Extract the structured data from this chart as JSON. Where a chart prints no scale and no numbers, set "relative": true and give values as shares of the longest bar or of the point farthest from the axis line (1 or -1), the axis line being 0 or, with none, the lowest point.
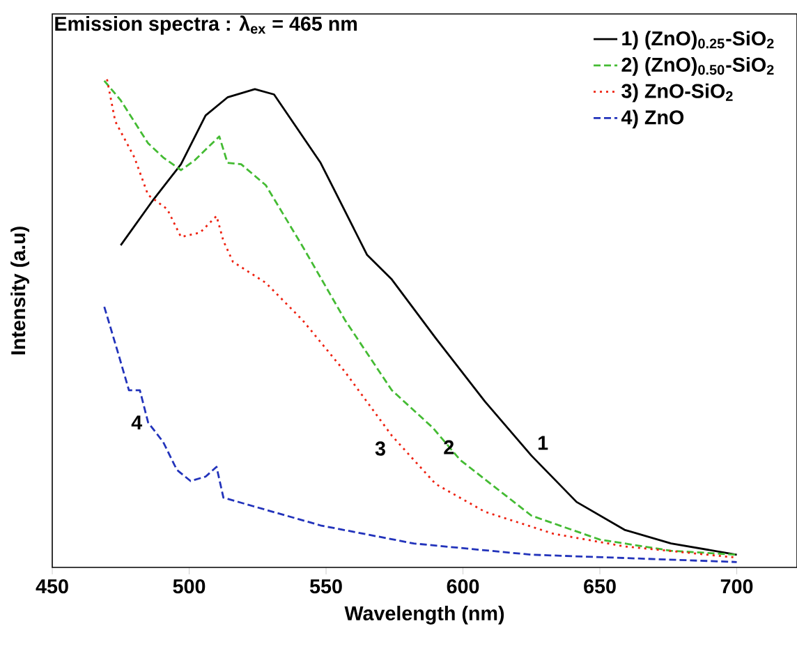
{
  "chart_data": {
    "type": "line",
    "title": "Emission spectra : λ$_{ex}$ = 465 nm",
    "xlabel": "Wavelength (nm)",
    "ylabel": "Intensity (a.u)",
    "relative": true,
    "xlim": [
      450,
      722
    ],
    "xticks": [
      450,
      500,
      550,
      600,
      650,
      700
    ],
    "legend": "top right",
    "series": [
      {
        "name": "1) (ZnO)$_{0.25}$-SiO$_{2}$",
        "color": "#000000",
        "line_style": "solid",
        "x": [
          475,
          487,
          497,
          506,
          514,
          524,
          531,
          548,
          565,
          574,
          590,
          608,
          625,
          641.5,
          659,
          676,
          700
        ],
        "values": [
          0.66,
          0.754,
          0.826,
          0.926,
          0.963,
          0.98,
          0.969,
          0.829,
          0.64,
          0.59,
          0.47,
          0.34,
          0.229,
          0.134,
          0.077,
          0.049,
          0.026
        ]
      },
      {
        "name": "2) (ZnO)$_{0.50}$-SiO$_{2}$",
        "color": "#44bb33",
        "line_style": "dashed",
        "x": [
          469,
          475,
          485,
          490.5,
          497,
          502,
          511,
          514,
          519,
          528,
          541.5,
          557,
          574,
          589,
          599,
          625,
          650,
          676,
          700
        ],
        "values": [
          0.997,
          0.957,
          0.869,
          0.84,
          0.814,
          0.834,
          0.883,
          0.829,
          0.826,
          0.783,
          0.657,
          0.506,
          0.363,
          0.286,
          0.22,
          0.106,
          0.057,
          0.034,
          0.026
        ]
      },
      {
        "name": "3) ZnO-SiO$_{2}$",
        "color": "#ee2211",
        "line_style": "dotted",
        "x": [
          470,
          473,
          480,
          485,
          492,
          497,
          504,
          510,
          512.5,
          516,
          528,
          541.5,
          557,
          574,
          590,
          608,
          633,
          659,
          700
        ],
        "values": [
          1.0,
          0.914,
          0.84,
          0.763,
          0.734,
          0.677,
          0.686,
          0.72,
          0.669,
          0.626,
          0.583,
          0.506,
          0.4,
          0.27,
          0.171,
          0.114,
          0.069,
          0.043,
          0.02
        ]
      },
      {
        "name": "4) ZnO",
        "color": "#2233bb",
        "line_style": "dashed",
        "x": [
          469,
          474,
          478,
          482,
          485,
          490.5,
          495.5,
          500.5,
          506,
          510,
          512.5,
          523,
          548,
          582,
          625,
          700
        ],
        "values": [
          0.534,
          0.44,
          0.363,
          0.363,
          0.297,
          0.257,
          0.2,
          0.177,
          0.186,
          0.206,
          0.143,
          0.126,
          0.086,
          0.049,
          0.026,
          0.011
        ]
      }
    ],
    "annotations": [
      {
        "text": "1",
        "x": 625,
        "y": 0.229
      },
      {
        "text": "2",
        "x": 599,
        "y": 0.22
      },
      {
        "text": "3",
        "x": 574,
        "y": 0.27
      },
      {
        "text": "4",
        "x": 485,
        "y": 0.297
      }
    ]
  }
}
